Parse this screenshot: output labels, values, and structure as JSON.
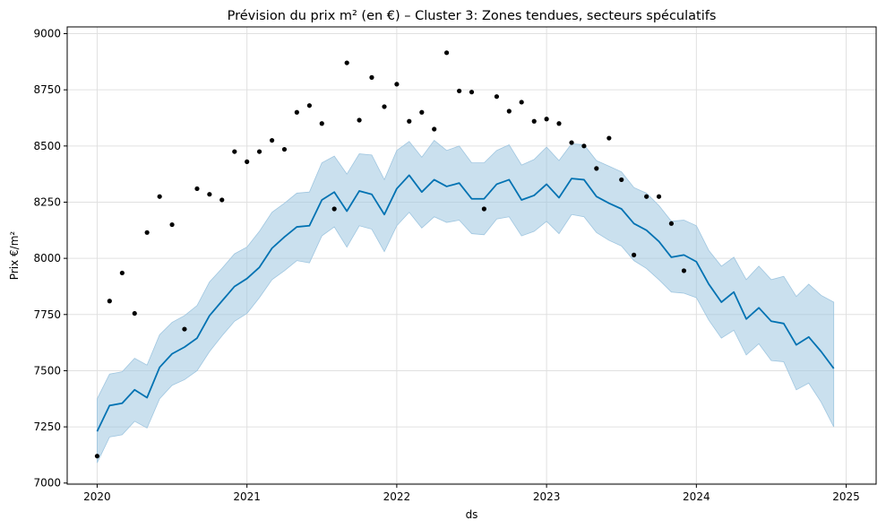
{
  "chart_data": {
    "type": "line",
    "title": "Prévision du prix m² (en €) – Cluster 3: Zones tendues, secteurs spéculatifs",
    "xlabel": "ds",
    "ylabel": "Prix €/m²",
    "xlim": [
      2019.8,
      2025.2
    ],
    "ylim": [
      6995,
      9030
    ],
    "x_ticks": [
      2020,
      2021,
      2022,
      2023,
      2024,
      2025
    ],
    "x_tick_labels": [
      "2020",
      "2021",
      "2022",
      "2023",
      "2024",
      "2025"
    ],
    "y_ticks": [
      7000,
      7250,
      7500,
      7750,
      8000,
      8250,
      8500,
      8750,
      9000
    ],
    "y_tick_labels": [
      "7000",
      "7250",
      "7500",
      "7750",
      "8000",
      "8250",
      "8500",
      "8750",
      "9000"
    ],
    "grid": true,
    "colors": {
      "forecast_line": "#0072b2",
      "interval_fill": "#9fc6e0",
      "observed_points": "#000000",
      "grid": "#e0e0e0"
    },
    "observed": {
      "x": [
        2020.0,
        2020.083,
        2020.167,
        2020.25,
        2020.333,
        2020.417,
        2020.5,
        2020.583,
        2020.667,
        2020.75,
        2020.833,
        2020.917,
        2021.0,
        2021.083,
        2021.167,
        2021.25,
        2021.333,
        2021.417,
        2021.5,
        2021.583,
        2021.667,
        2021.75,
        2021.833,
        2021.917,
        2022.0,
        2022.083,
        2022.167,
        2022.25,
        2022.333,
        2022.417,
        2022.5,
        2022.583,
        2022.667,
        2022.75,
        2022.833,
        2022.917,
        2023.0,
        2023.083,
        2023.167,
        2023.25,
        2023.333,
        2023.417,
        2023.5,
        2023.583,
        2023.667,
        2023.75,
        2023.833,
        2023.917
      ],
      "y": [
        7120,
        7810,
        7935,
        7755,
        8115,
        8275,
        8150,
        7685,
        8310,
        8285,
        8260,
        8475,
        8430,
        8475,
        8525,
        8485,
        8650,
        8680,
        8600,
        8220,
        8870,
        8615,
        8805,
        8675,
        8775,
        8610,
        8650,
        8575,
        8915,
        8745,
        8740,
        8220,
        8720,
        8655,
        8695,
        8610,
        8620,
        8600,
        8515,
        8500,
        8400,
        8535,
        8350,
        8015,
        8275,
        8275,
        8155,
        7945
      ]
    },
    "forecast": {
      "x": [
        2020.0,
        2020.083,
        2020.167,
        2020.25,
        2020.333,
        2020.417,
        2020.5,
        2020.583,
        2020.667,
        2020.75,
        2020.833,
        2020.917,
        2021.0,
        2021.083,
        2021.167,
        2021.25,
        2021.333,
        2021.417,
        2021.5,
        2021.583,
        2021.667,
        2021.75,
        2021.833,
        2021.917,
        2022.0,
        2022.083,
        2022.167,
        2022.25,
        2022.333,
        2022.417,
        2022.5,
        2022.583,
        2022.667,
        2022.75,
        2022.833,
        2022.917,
        2023.0,
        2023.083,
        2023.167,
        2023.25,
        2023.333,
        2023.417,
        2023.5,
        2023.583,
        2023.667,
        2023.75,
        2023.833,
        2023.917,
        2024.0,
        2024.083,
        2024.167,
        2024.25,
        2024.333,
        2024.417,
        2024.5,
        2024.583,
        2024.667,
        2024.75,
        2024.833,
        2024.917
      ],
      "yhat": [
        7230,
        7345,
        7355,
        7415,
        7380,
        7515,
        7575,
        7605,
        7645,
        7745,
        7810,
        7875,
        7910,
        7960,
        8045,
        8095,
        8140,
        8145,
        8260,
        8295,
        8210,
        8300,
        8285,
        8195,
        8310,
        8370,
        8295,
        8350,
        8320,
        8335,
        8265,
        8265,
        8330,
        8350,
        8260,
        8280,
        8330,
        8270,
        8355,
        8350,
        8275,
        8245,
        8220,
        8155,
        8125,
        8075,
        8005,
        8015,
        7985,
        7885,
        7805,
        7850,
        7730,
        7780,
        7720,
        7710,
        7615,
        7650,
        7585,
        7510
      ],
      "yhat_lower": [
        7090,
        7205,
        7215,
        7275,
        7245,
        7375,
        7435,
        7460,
        7500,
        7585,
        7655,
        7720,
        7755,
        7825,
        7905,
        7945,
        7990,
        7980,
        8100,
        8140,
        8050,
        8145,
        8130,
        8030,
        8145,
        8205,
        8135,
        8185,
        8160,
        8170,
        8110,
        8105,
        8175,
        8185,
        8100,
        8120,
        8165,
        8110,
        8195,
        8185,
        8115,
        8080,
        8055,
        7990,
        7955,
        7905,
        7850,
        7845,
        7825,
        7725,
        7645,
        7680,
        7570,
        7620,
        7545,
        7540,
        7415,
        7445,
        7360,
        7250
      ],
      "yhat_upper": [
        7375,
        7485,
        7495,
        7555,
        7525,
        7660,
        7715,
        7745,
        7790,
        7895,
        7955,
        8020,
        8050,
        8120,
        8205,
        8245,
        8290,
        8295,
        8425,
        8455,
        8375,
        8465,
        8460,
        8350,
        8480,
        8520,
        8450,
        8525,
        8480,
        8500,
        8425,
        8425,
        8480,
        8505,
        8415,
        8440,
        8495,
        8435,
        8510,
        8505,
        8435,
        8410,
        8385,
        8315,
        8290,
        8235,
        8165,
        8170,
        8145,
        8035,
        7965,
        8005,
        7905,
        7965,
        7905,
        7920,
        7830,
        7885,
        7835,
        7805
      ]
    }
  }
}
